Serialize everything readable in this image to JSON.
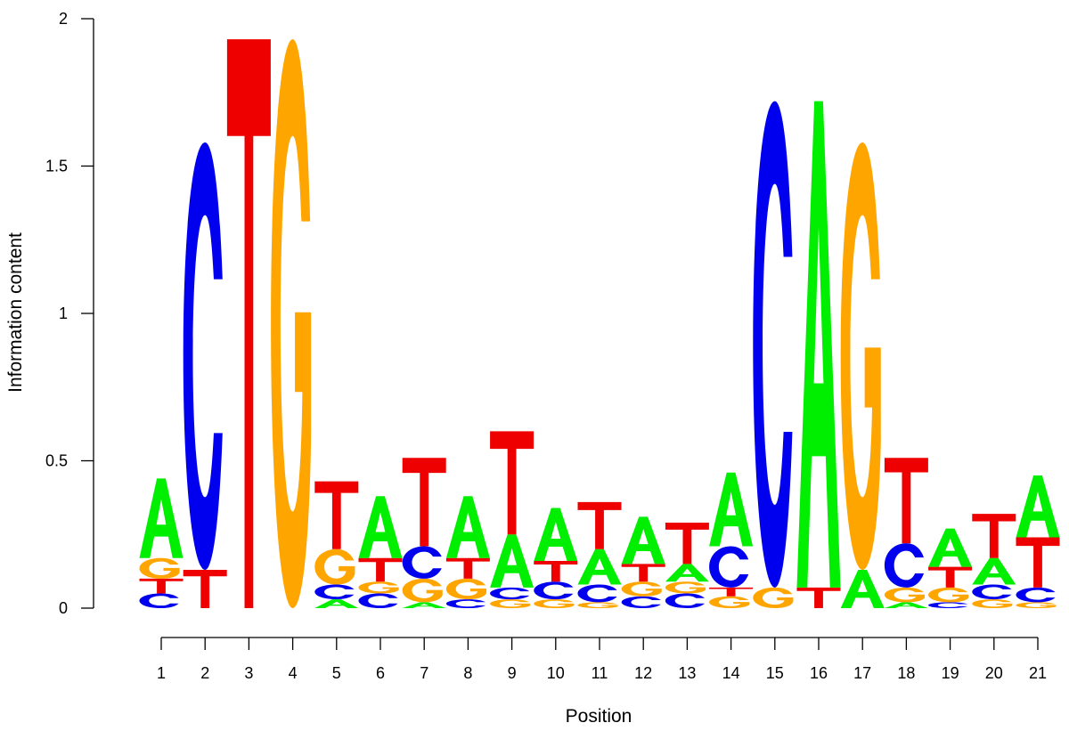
{
  "chart_data": {
    "type": "sequence-logo",
    "title": "",
    "xlabel": "Position",
    "ylabel": "Information content",
    "ylim": [
      0,
      2
    ],
    "y_ticks": [
      {
        "value": 0,
        "label": "0"
      },
      {
        "value": 0.5,
        "label": "0.5"
      },
      {
        "value": 1,
        "label": "1"
      },
      {
        "value": 1.5,
        "label": "1.5"
      },
      {
        "value": 2,
        "label": "2"
      }
    ],
    "colors": {
      "A": "#00ee00",
      "C": "#0000ee",
      "G": "#ffa500",
      "T": "#ee0000"
    },
    "positions": [
      {
        "label": "1",
        "stack": [
          [
            "C",
            0.05
          ],
          [
            "T",
            0.05
          ],
          [
            "G",
            0.07
          ],
          [
            "A",
            0.27
          ]
        ]
      },
      {
        "label": "2",
        "stack": [
          [
            "T",
            0.13
          ],
          [
            "C",
            1.45
          ]
        ]
      },
      {
        "label": "3",
        "stack": [
          [
            "T",
            1.93
          ]
        ]
      },
      {
        "label": "4",
        "stack": [
          [
            "G",
            1.93
          ]
        ]
      },
      {
        "label": "5",
        "stack": [
          [
            "A",
            0.03
          ],
          [
            "C",
            0.05
          ],
          [
            "G",
            0.12
          ],
          [
            "T",
            0.23
          ]
        ]
      },
      {
        "label": "6",
        "stack": [
          [
            "C",
            0.05
          ],
          [
            "G",
            0.04
          ],
          [
            "T",
            0.08
          ],
          [
            "A",
            0.21
          ]
        ]
      },
      {
        "label": "7",
        "stack": [
          [
            "A",
            0.02
          ],
          [
            "G",
            0.08
          ],
          [
            "C",
            0.11
          ],
          [
            "T",
            0.3
          ]
        ]
      },
      {
        "label": "8",
        "stack": [
          [
            "C",
            0.03
          ],
          [
            "G",
            0.07
          ],
          [
            "T",
            0.07
          ],
          [
            "A",
            0.21
          ]
        ]
      },
      {
        "label": "9",
        "stack": [
          [
            "G",
            0.03
          ],
          [
            "C",
            0.04
          ],
          [
            "A",
            0.18
          ],
          [
            "T",
            0.35
          ]
        ]
      },
      {
        "label": "10",
        "stack": [
          [
            "G",
            0.03
          ],
          [
            "C",
            0.06
          ],
          [
            "T",
            0.07
          ],
          [
            "A",
            0.18
          ]
        ]
      },
      {
        "label": "11",
        "stack": [
          [
            "G",
            0.02
          ],
          [
            "C",
            0.06
          ],
          [
            "A",
            0.12
          ],
          [
            "T",
            0.16
          ]
        ]
      },
      {
        "label": "12",
        "stack": [
          [
            "C",
            0.04
          ],
          [
            "G",
            0.05
          ],
          [
            "T",
            0.06
          ],
          [
            "A",
            0.16
          ]
        ]
      },
      {
        "label": "13",
        "stack": [
          [
            "C",
            0.05
          ],
          [
            "G",
            0.04
          ],
          [
            "A",
            0.06
          ],
          [
            "T",
            0.14
          ]
        ]
      },
      {
        "label": "14",
        "stack": [
          [
            "G",
            0.04
          ],
          [
            "T",
            0.03
          ],
          [
            "C",
            0.14
          ],
          [
            "A",
            0.25
          ]
        ]
      },
      {
        "label": "15",
        "stack": [
          [
            "G",
            0.07
          ],
          [
            "C",
            1.65
          ]
        ]
      },
      {
        "label": "16",
        "stack": [
          [
            "T",
            0.07
          ],
          [
            "A",
            1.65
          ]
        ]
      },
      {
        "label": "17",
        "stack": [
          [
            "A",
            0.13
          ],
          [
            "G",
            1.45
          ]
        ]
      },
      {
        "label": "18",
        "stack": [
          [
            "A",
            0.02
          ],
          [
            "G",
            0.05
          ],
          [
            "C",
            0.15
          ],
          [
            "T",
            0.29
          ]
        ]
      },
      {
        "label": "19",
        "stack": [
          [
            "C",
            0.02
          ],
          [
            "G",
            0.05
          ],
          [
            "T",
            0.07
          ],
          [
            "A",
            0.13
          ]
        ]
      },
      {
        "label": "20",
        "stack": [
          [
            "G",
            0.03
          ],
          [
            "C",
            0.05
          ],
          [
            "A",
            0.09
          ],
          [
            "T",
            0.15
          ]
        ]
      },
      {
        "label": "21",
        "stack": [
          [
            "G",
            0.02
          ],
          [
            "C",
            0.05
          ],
          [
            "T",
            0.17
          ],
          [
            "A",
            0.21
          ]
        ]
      }
    ]
  }
}
